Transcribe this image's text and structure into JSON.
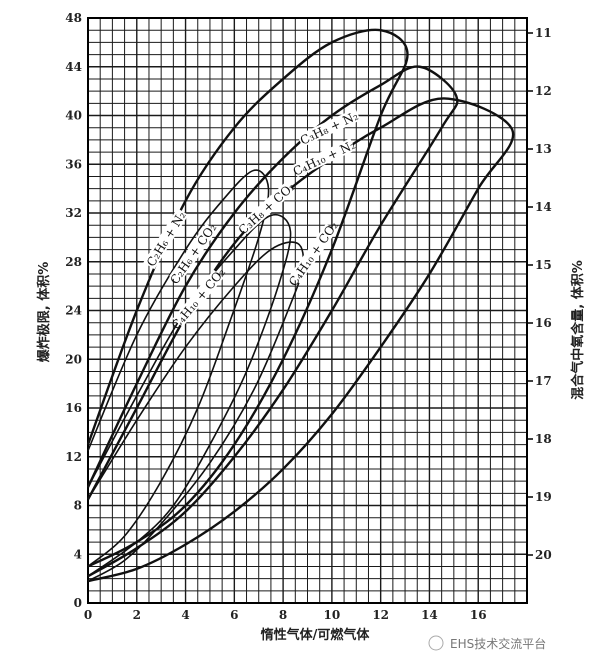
{
  "chart_data": {
    "type": "line",
    "title": "",
    "xlabel": "惰性气体/可燃气体",
    "ylabel": "爆炸极限, 体积%",
    "y2label": "混合气中氧含量, 体积%",
    "xlim": [
      0,
      18
    ],
    "ylim": [
      0,
      48
    ],
    "y2lim": [
      11,
      20
    ],
    "grid": true,
    "x_ticks": [
      "0",
      "2",
      "4",
      "6",
      "8",
      "10",
      "12",
      "14",
      "16"
    ],
    "y_ticks": [
      "0",
      "4",
      "8",
      "12",
      "16",
      "20",
      "24",
      "28",
      "32",
      "36",
      "40",
      "44",
      "48"
    ],
    "y2_ticks": [
      "11",
      "12",
      "13",
      "14",
      "15",
      "16",
      "17",
      "18",
      "19",
      "20"
    ],
    "colors": {
      "line": "#111111",
      "grid": "#1a1a1a"
    },
    "series": [
      {
        "name": "C₂H₆ + N₂",
        "points": [
          [
            0,
            13
          ],
          [
            2,
            24
          ],
          [
            4,
            33
          ],
          [
            6,
            39
          ],
          [
            8,
            43
          ],
          [
            10,
            46
          ],
          [
            12,
            47
          ],
          [
            13.1,
            45
          ],
          [
            12,
            40
          ],
          [
            10,
            29
          ],
          [
            8,
            20
          ],
          [
            6,
            13
          ],
          [
            4,
            8
          ],
          [
            2,
            5
          ],
          [
            0,
            3
          ]
        ]
      },
      {
        "name": "C₃H₈ + N₂",
        "points": [
          [
            0,
            9.5
          ],
          [
            2,
            18
          ],
          [
            4,
            26
          ],
          [
            6,
            32
          ],
          [
            8,
            36.5
          ],
          [
            10,
            40
          ],
          [
            12,
            42.5
          ],
          [
            13.6,
            44
          ],
          [
            15.1,
            41.6
          ],
          [
            14.5,
            39
          ],
          [
            12,
            31
          ],
          [
            10,
            24
          ],
          [
            8,
            17.5
          ],
          [
            6,
            12
          ],
          [
            4,
            7.5
          ],
          [
            2,
            4.5
          ],
          [
            0,
            2.2
          ]
        ]
      },
      {
        "name": "C₄H₁₀ + N₂",
        "points": [
          [
            0,
            8.5
          ],
          [
            2,
            16
          ],
          [
            4,
            23.5
          ],
          [
            6,
            29.5
          ],
          [
            8,
            33.5
          ],
          [
            10,
            36.5
          ],
          [
            12,
            39
          ],
          [
            14.6,
            41.4
          ],
          [
            17.4,
            38.8
          ],
          [
            16,
            34
          ],
          [
            14,
            27
          ],
          [
            12,
            21
          ],
          [
            10,
            15.5
          ],
          [
            8,
            11
          ],
          [
            6,
            7.5
          ],
          [
            4,
            4.8
          ],
          [
            2,
            2.8
          ],
          [
            0,
            1.8
          ]
        ]
      },
      {
        "name": "C₂H₆ + CO₂",
        "points": [
          [
            0,
            12.5
          ],
          [
            2,
            22
          ],
          [
            4,
            29
          ],
          [
            5.5,
            33
          ],
          [
            6.8,
            35.5
          ],
          [
            7.4,
            34
          ],
          [
            7,
            30
          ],
          [
            5.8,
            23
          ],
          [
            4.5,
            16
          ],
          [
            3,
            10
          ],
          [
            1.5,
            5.5
          ],
          [
            0,
            3
          ]
        ]
      },
      {
        "name": "C₃H₈ + CO₂",
        "points": [
          [
            0,
            9.5
          ],
          [
            2,
            17
          ],
          [
            4,
            24
          ],
          [
            6,
            29
          ],
          [
            7.5,
            31.8
          ],
          [
            8.3,
            30.5
          ],
          [
            7.8,
            26
          ],
          [
            6.5,
            19
          ],
          [
            5,
            13
          ],
          [
            3.5,
            8
          ],
          [
            2,
            5
          ],
          [
            0,
            2.2
          ]
        ]
      },
      {
        "name": "C₄H₁₀ + CO₂",
        "points": [
          [
            0,
            8.5
          ],
          [
            2,
            15
          ],
          [
            4,
            21
          ],
          [
            6,
            26
          ],
          [
            7.5,
            29
          ],
          [
            8.6,
            29.5
          ],
          [
            8.8,
            27.5
          ],
          [
            8.2,
            24
          ],
          [
            6.8,
            17.5
          ],
          [
            5,
            11.5
          ],
          [
            3,
            6.5
          ],
          [
            1.5,
            3.5
          ],
          [
            0,
            1.8
          ]
        ]
      }
    ],
    "curve_labels": [
      "C₂H₆ + N₂",
      "C₂H₆ + CO₂",
      "C₃H₈ + CO₂",
      "C₄H₁₀ + CO₂",
      "C₃H₈ + N₂",
      "C₄H₁₀ + N₂",
      "C₄H₁₀ + CO₂"
    ]
  },
  "watermark": {
    "text": "EHS技术交流平台",
    "icon": "wechat-icon"
  }
}
